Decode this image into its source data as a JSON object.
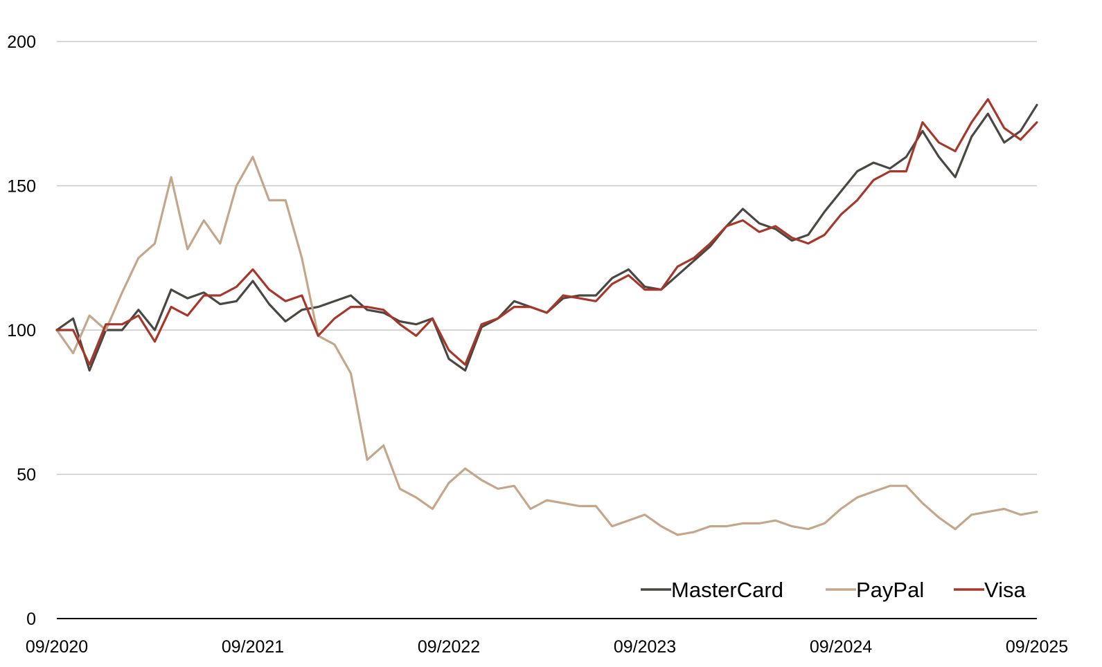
{
  "chart_data": {
    "type": "line",
    "title": "",
    "xlabel": "",
    "ylabel": "",
    "ylim": [
      0,
      200
    ],
    "y_ticks": [
      "0",
      "50",
      "100",
      "150",
      "200"
    ],
    "x_tick_labels": [
      "09/2020",
      "09/2021",
      "09/2022",
      "09/2023",
      "09/2024",
      "09/2025"
    ],
    "x_range": [
      "2020-09",
      "2025-09"
    ],
    "grid": "horizontal",
    "legend_position": "bottom-right",
    "series": [
      {
        "name": "MasterCard",
        "color": "#4a4743",
        "points": [
          [
            "2020-09",
            100
          ],
          [
            "2020-10",
            104
          ],
          [
            "2020-11",
            86
          ],
          [
            "2020-12",
            100
          ],
          [
            "2021-01",
            100
          ],
          [
            "2021-02",
            107
          ],
          [
            "2021-03",
            100
          ],
          [
            "2021-04",
            114
          ],
          [
            "2021-05",
            111
          ],
          [
            "2021-06",
            113
          ],
          [
            "2021-07",
            109
          ],
          [
            "2021-08",
            110
          ],
          [
            "2021-09",
            117
          ],
          [
            "2021-10",
            109
          ],
          [
            "2021-11",
            103
          ],
          [
            "2021-12",
            107
          ],
          [
            "2022-01",
            108
          ],
          [
            "2022-02",
            110
          ],
          [
            "2022-03",
            112
          ],
          [
            "2022-04",
            107
          ],
          [
            "2022-05",
            106
          ],
          [
            "2022-06",
            103
          ],
          [
            "2022-07",
            102
          ],
          [
            "2022-08",
            104
          ],
          [
            "2022-09",
            90
          ],
          [
            "2022-10",
            86
          ],
          [
            "2022-11",
            101
          ],
          [
            "2022-12",
            104
          ],
          [
            "2023-01",
            110
          ],
          [
            "2023-02",
            108
          ],
          [
            "2023-03",
            106
          ],
          [
            "2023-04",
            111
          ],
          [
            "2023-05",
            112
          ],
          [
            "2023-06",
            112
          ],
          [
            "2023-07",
            118
          ],
          [
            "2023-08",
            121
          ],
          [
            "2023-09",
            115
          ],
          [
            "2023-10",
            114
          ],
          [
            "2023-11",
            119
          ],
          [
            "2023-12",
            124
          ],
          [
            "2024-01",
            129
          ],
          [
            "2024-02",
            136
          ],
          [
            "2024-03",
            142
          ],
          [
            "2024-04",
            137
          ],
          [
            "2024-05",
            135
          ],
          [
            "2024-06",
            131
          ],
          [
            "2024-07",
            133
          ],
          [
            "2024-08",
            141
          ],
          [
            "2024-09",
            148
          ],
          [
            "2024-10",
            155
          ],
          [
            "2024-11",
            158
          ],
          [
            "2024-12",
            156
          ],
          [
            "2025-01",
            160
          ],
          [
            "2025-02",
            169
          ],
          [
            "2025-03",
            160
          ],
          [
            "2025-04",
            153
          ],
          [
            "2025-05",
            167
          ],
          [
            "2025-06",
            175
          ],
          [
            "2025-07",
            165
          ],
          [
            "2025-08",
            169
          ],
          [
            "2025-09",
            178
          ]
        ]
      },
      {
        "name": "PayPal",
        "color": "#c4a78a",
        "points": [
          [
            "2020-09",
            100
          ],
          [
            "2020-10",
            92
          ],
          [
            "2020-11",
            105
          ],
          [
            "2020-12",
            100
          ],
          [
            "2021-01",
            113
          ],
          [
            "2021-02",
            125
          ],
          [
            "2021-03",
            130
          ],
          [
            "2021-04",
            153
          ],
          [
            "2021-05",
            128
          ],
          [
            "2021-06",
            138
          ],
          [
            "2021-07",
            130
          ],
          [
            "2021-08",
            150
          ],
          [
            "2021-09",
            160
          ],
          [
            "2021-10",
            145
          ],
          [
            "2021-11",
            145
          ],
          [
            "2021-12",
            125
          ],
          [
            "2022-01",
            98
          ],
          [
            "2022-02",
            95
          ],
          [
            "2022-03",
            85
          ],
          [
            "2022-04",
            55
          ],
          [
            "2022-05",
            60
          ],
          [
            "2022-06",
            45
          ],
          [
            "2022-07",
            42
          ],
          [
            "2022-08",
            38
          ],
          [
            "2022-09",
            47
          ],
          [
            "2022-10",
            52
          ],
          [
            "2022-11",
            48
          ],
          [
            "2022-12",
            45
          ],
          [
            "2023-01",
            46
          ],
          [
            "2023-02",
            38
          ],
          [
            "2023-03",
            41
          ],
          [
            "2023-04",
            40
          ],
          [
            "2023-05",
            39
          ],
          [
            "2023-06",
            39
          ],
          [
            "2023-07",
            32
          ],
          [
            "2023-08",
            34
          ],
          [
            "2023-09",
            36
          ],
          [
            "2023-10",
            32
          ],
          [
            "2023-11",
            29
          ],
          [
            "2023-12",
            30
          ],
          [
            "2024-01",
            32
          ],
          [
            "2024-02",
            32
          ],
          [
            "2024-03",
            33
          ],
          [
            "2024-04",
            33
          ],
          [
            "2024-05",
            34
          ],
          [
            "2024-06",
            32
          ],
          [
            "2024-07",
            31
          ],
          [
            "2024-08",
            33
          ],
          [
            "2024-09",
            38
          ],
          [
            "2024-10",
            42
          ],
          [
            "2024-11",
            44
          ],
          [
            "2024-12",
            46
          ],
          [
            "2025-01",
            46
          ],
          [
            "2025-02",
            40
          ],
          [
            "2025-03",
            35
          ],
          [
            "2025-04",
            31
          ],
          [
            "2025-05",
            36
          ],
          [
            "2025-06",
            37
          ],
          [
            "2025-07",
            38
          ],
          [
            "2025-08",
            36
          ],
          [
            "2025-09",
            37
          ]
        ]
      },
      {
        "name": "Visa",
        "color": "#a6372a",
        "points": [
          [
            "2020-09",
            100
          ],
          [
            "2020-10",
            100
          ],
          [
            "2020-11",
            88
          ],
          [
            "2020-12",
            102
          ],
          [
            "2021-01",
            102
          ],
          [
            "2021-02",
            105
          ],
          [
            "2021-03",
            96
          ],
          [
            "2021-04",
            108
          ],
          [
            "2021-05",
            105
          ],
          [
            "2021-06",
            112
          ],
          [
            "2021-07",
            112
          ],
          [
            "2021-08",
            115
          ],
          [
            "2021-09",
            121
          ],
          [
            "2021-10",
            114
          ],
          [
            "2021-11",
            110
          ],
          [
            "2021-12",
            112
          ],
          [
            "2022-01",
            98
          ],
          [
            "2022-02",
            104
          ],
          [
            "2022-03",
            108
          ],
          [
            "2022-04",
            108
          ],
          [
            "2022-05",
            107
          ],
          [
            "2022-06",
            102
          ],
          [
            "2022-07",
            98
          ],
          [
            "2022-08",
            104
          ],
          [
            "2022-09",
            93
          ],
          [
            "2022-10",
            88
          ],
          [
            "2022-11",
            102
          ],
          [
            "2022-12",
            104
          ],
          [
            "2023-01",
            108
          ],
          [
            "2023-02",
            108
          ],
          [
            "2023-03",
            106
          ],
          [
            "2023-04",
            112
          ],
          [
            "2023-05",
            111
          ],
          [
            "2023-06",
            110
          ],
          [
            "2023-07",
            116
          ],
          [
            "2023-08",
            119
          ],
          [
            "2023-09",
            114
          ],
          [
            "2023-10",
            114
          ],
          [
            "2023-11",
            122
          ],
          [
            "2023-12",
            125
          ],
          [
            "2024-01",
            130
          ],
          [
            "2024-02",
            136
          ],
          [
            "2024-03",
            138
          ],
          [
            "2024-04",
            134
          ],
          [
            "2024-05",
            136
          ],
          [
            "2024-06",
            132
          ],
          [
            "2024-07",
            130
          ],
          [
            "2024-08",
            133
          ],
          [
            "2024-09",
            140
          ],
          [
            "2024-10",
            145
          ],
          [
            "2024-11",
            152
          ],
          [
            "2024-12",
            155
          ],
          [
            "2025-01",
            155
          ],
          [
            "2025-02",
            172
          ],
          [
            "2025-03",
            165
          ],
          [
            "2025-04",
            162
          ],
          [
            "2025-05",
            172
          ],
          [
            "2025-06",
            180
          ],
          [
            "2025-07",
            170
          ],
          [
            "2025-08",
            166
          ],
          [
            "2025-09",
            172
          ]
        ]
      }
    ]
  }
}
